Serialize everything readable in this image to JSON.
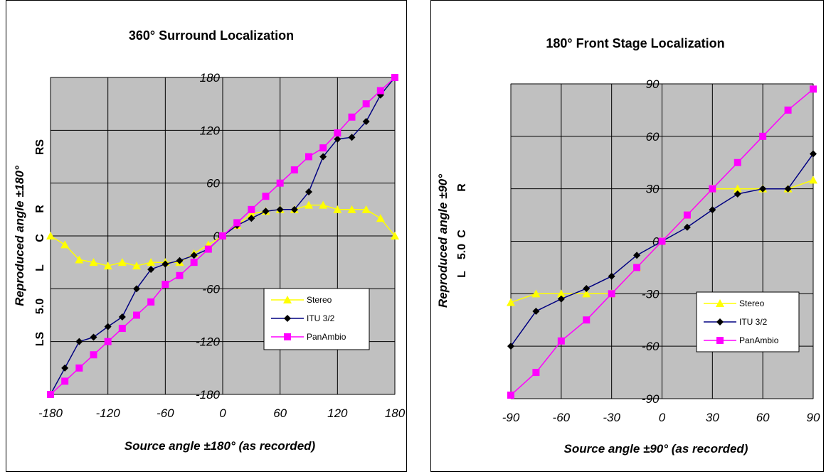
{
  "chart_data": [
    {
      "type": "line",
      "title": "360° Surround Localization",
      "xlabel": "Source angle ±180° (as recorded)",
      "ylabel": "Reproduced angle ±180°",
      "speaker_labels": [
        "LS",
        "5.0",
        "L",
        "C",
        "R",
        "RS"
      ],
      "xlim": [
        -180,
        180
      ],
      "ylim": [
        -180,
        180
      ],
      "xticks": [
        "-180",
        "-120",
        "-60",
        "0",
        "60",
        "120",
        "180"
      ],
      "yticks": [
        "180",
        "120",
        "60",
        "0",
        "-60",
        "-120",
        "-180"
      ],
      "grid": true,
      "legend_position": "lower-right",
      "x": [
        -180,
        -165,
        -150,
        -135,
        -120,
        -105,
        -90,
        -75,
        -60,
        -45,
        -30,
        -15,
        0,
        15,
        30,
        45,
        60,
        75,
        90,
        105,
        120,
        135,
        150,
        165,
        180
      ],
      "series": [
        {
          "name": "Stereo",
          "color": "#ffff00",
          "marker": "triangle",
          "values": [
            0,
            -10,
            -27,
            -30,
            -34,
            -30,
            -34,
            -30,
            -30,
            -30,
            -20,
            -10,
            0,
            12,
            25,
            28,
            30,
            30,
            35,
            35,
            30,
            30,
            30,
            20,
            0
          ]
        },
        {
          "name": "ITU 3/2",
          "color": "#000080",
          "marker": "diamond",
          "values": [
            -180,
            -150,
            -120,
            -115,
            -103,
            -92,
            -60,
            -38,
            -32,
            -28,
            -22,
            -15,
            0,
            12,
            20,
            28,
            30,
            30,
            50,
            90,
            110,
            112,
            130,
            160,
            180
          ]
        },
        {
          "name": "PanAmbio",
          "color": "#ff00ff",
          "marker": "square",
          "values": [
            -180,
            -165,
            -150,
            -135,
            -120,
            -105,
            -90,
            -75,
            -55,
            -45,
            -30,
            -15,
            0,
            15,
            30,
            45,
            60,
            75,
            90,
            100,
            117,
            135,
            150,
            165,
            180
          ]
        }
      ]
    },
    {
      "type": "line",
      "title": "180° Front Stage Localization",
      "xlabel": "Source angle ±90° (as recorded)",
      "ylabel": "Reproduced angle ±90°",
      "speaker_labels": [
        "L",
        "5.0",
        "C",
        "R"
      ],
      "xlim": [
        -90,
        90
      ],
      "ylim": [
        -90,
        90
      ],
      "xticks": [
        "-90",
        "-60",
        "-30",
        "0",
        "30",
        "60",
        "90"
      ],
      "yticks": [
        "90",
        "60",
        "30",
        "0",
        "-30",
        "-60",
        "-90"
      ],
      "grid": true,
      "legend_position": "lower-right",
      "x": [
        -90,
        -75,
        -60,
        -45,
        -30,
        -15,
        0,
        15,
        30,
        45,
        60,
        75,
        90
      ],
      "series": [
        {
          "name": "Stereo",
          "color": "#ffff00",
          "marker": "triangle",
          "values": [
            -35,
            -30,
            -30,
            -30,
            -30,
            -15,
            0,
            15,
            30,
            30,
            30,
            30,
            35
          ]
        },
        {
          "name": "ITU 3/2",
          "color": "#000080",
          "marker": "diamond",
          "values": [
            -60,
            -40,
            -33,
            -27,
            -20,
            -8,
            0,
            8,
            18,
            27,
            30,
            30,
            50
          ]
        },
        {
          "name": "PanAmbio",
          "color": "#ff00ff",
          "marker": "square",
          "values": [
            -88,
            -75,
            -57,
            -45,
            -30,
            -15,
            0,
            15,
            30,
            45,
            60,
            75,
            87
          ]
        }
      ]
    }
  ]
}
